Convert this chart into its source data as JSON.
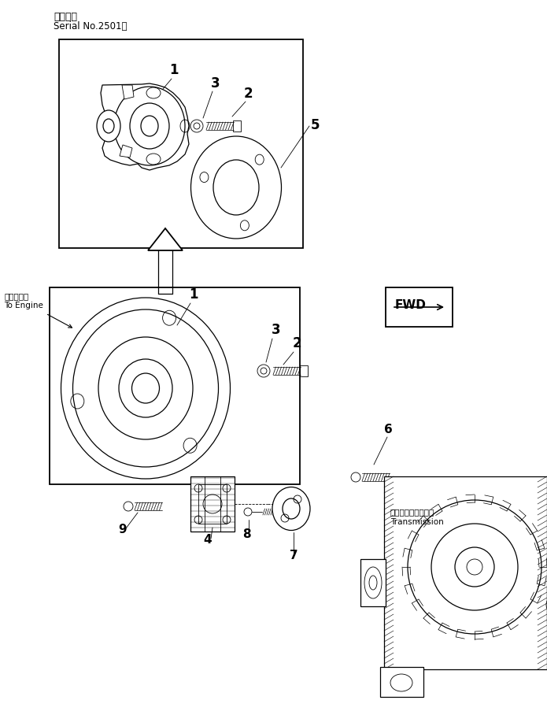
{
  "title_line1": "適用号機",
  "title_line2": "Serial No.2501～",
  "label_engine_jp": "エンジンへ",
  "label_engine_en": "To Engine",
  "label_transmission_jp": "トランスミッション",
  "label_transmission_en": "Transmission",
  "label_fwd": "FWD",
  "bg_color": "#ffffff",
  "line_color": "#000000"
}
